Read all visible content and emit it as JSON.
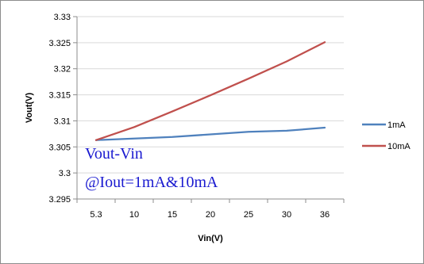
{
  "chart_data": {
    "type": "line",
    "title": "",
    "xlabel": "Vin(V)",
    "ylabel": "Vout(V)",
    "categories": [
      "5.3",
      "10",
      "15",
      "20",
      "25",
      "30",
      "36"
    ],
    "ylim": [
      3.295,
      3.33
    ],
    "yticks": [
      "3.33",
      "3.325",
      "3.32",
      "3.315",
      "3.31",
      "3.305",
      "3.3",
      "3.295"
    ],
    "grid": "horizontal",
    "legend_position": "right",
    "series": [
      {
        "name": "1mA",
        "color": "#4f81bd",
        "values": [
          3.3063,
          3.3066,
          3.3069,
          3.3074,
          3.3079,
          3.3081,
          3.3087
        ]
      },
      {
        "name": "10mA",
        "color": "#c0504d",
        "values": [
          3.3063,
          3.3088,
          3.3118,
          3.3149,
          3.3181,
          3.3214,
          3.3251
        ]
      }
    ],
    "annotation": [
      "Vout-Vin",
      "@Iout=1mA&10mA"
    ]
  }
}
